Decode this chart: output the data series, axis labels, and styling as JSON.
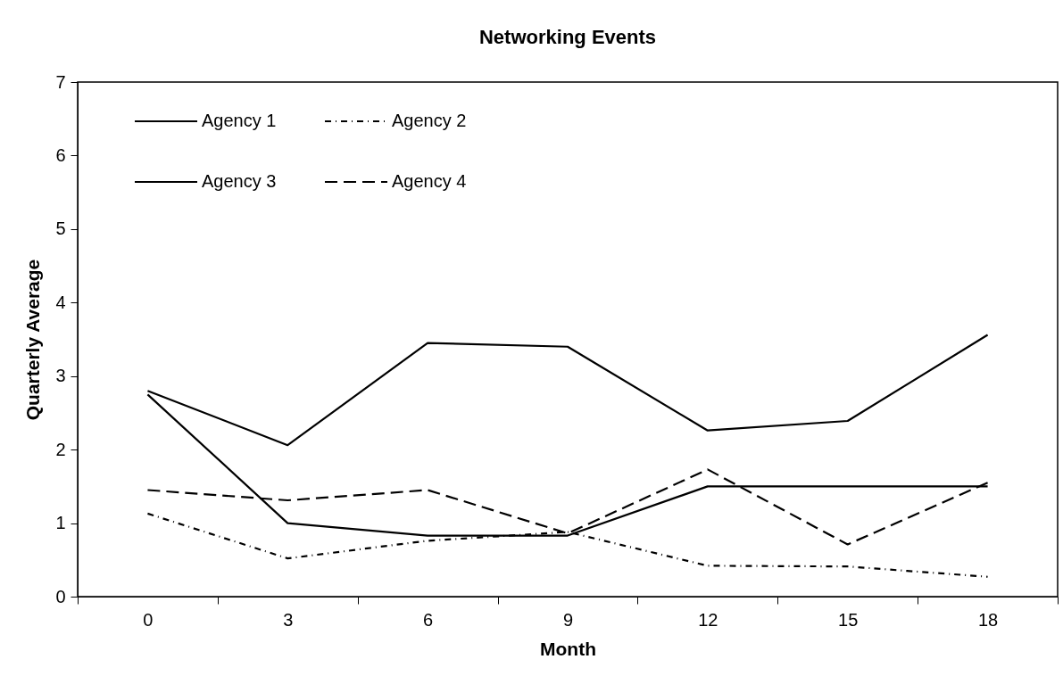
{
  "chart_data": {
    "type": "line",
    "title": "Networking Events",
    "xlabel": "Month",
    "ylabel": "Quarterly Average",
    "categories": [
      "0",
      "3",
      "6",
      "9",
      "12",
      "15",
      "18"
    ],
    "series": [
      {
        "name": "Agency 1",
        "color": "#000000",
        "line_style": "solid",
        "values": [
          2.8,
          2.06,
          3.45,
          3.4,
          2.26,
          2.39,
          3.56
        ]
      },
      {
        "name": "Agency 3",
        "color": "#000000",
        "line_style": "solid",
        "values": [
          2.75,
          1.0,
          0.83,
          0.83,
          1.5,
          1.5,
          1.5
        ]
      },
      {
        "name": "Agency 2",
        "color": "#000000",
        "line_style": "dashdot",
        "values": [
          1.13,
          0.52,
          0.76,
          0.88,
          0.42,
          0.41,
          0.27
        ]
      },
      {
        "name": "Agency 4",
        "color": "#000000",
        "line_style": "dashed",
        "values": [
          1.45,
          1.31,
          1.45,
          0.86,
          1.73,
          0.71,
          1.55
        ]
      }
    ],
    "ylim": [
      0,
      7
    ],
    "yticks": [
      0,
      1,
      2,
      3,
      4,
      5,
      6,
      7
    ],
    "grid": false,
    "legend": "top left",
    "marker": "none"
  }
}
